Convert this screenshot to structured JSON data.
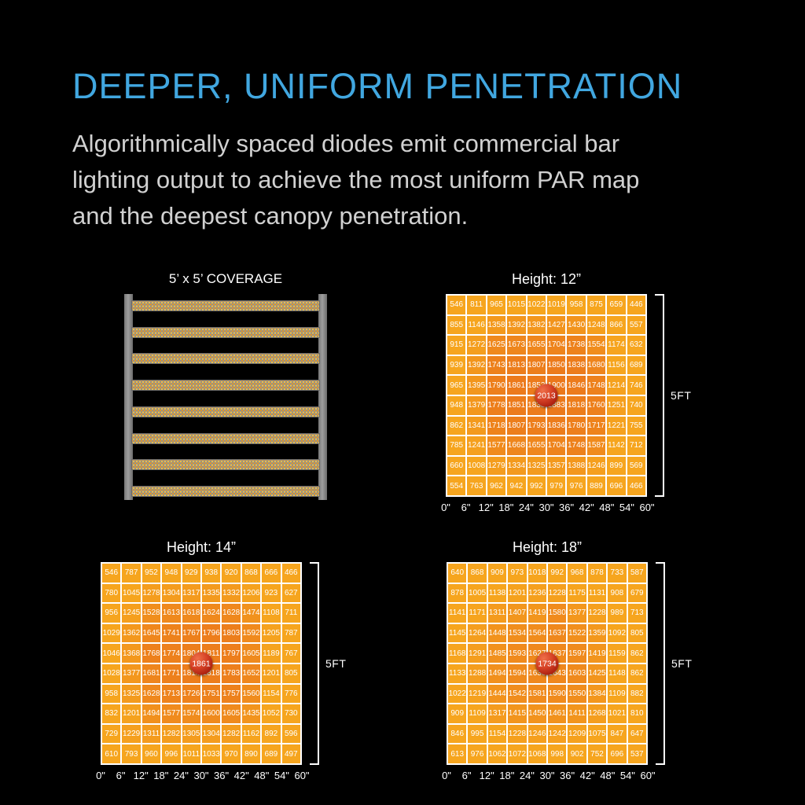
{
  "colors": {
    "background": "#000000",
    "accent_blue": "#41A7E0",
    "body_text": "#D1D1D1",
    "white": "#FFFFFF",
    "cell_low": "#F6A51E",
    "cell_high": "#EB781C",
    "peak_red": "#C22B16",
    "grid_line": "#FFFFFF",
    "rail_gray": "#8D8D8D"
  },
  "header": {
    "title": "DEEPER, UNIFORM PENETRATION",
    "description": "Algorithmically spaced diodes emit commercial bar\nlighting output to achieve the most uniform PAR map\nand the deepest canopy penetration."
  },
  "coverage": {
    "title": "5’ x 5’ COVERAGE",
    "bar_count": 8
  },
  "chart_data": [
    {
      "type": "heatmap",
      "title": "Height: 12”",
      "side_label": "5FT",
      "x_ticks": [
        "0\"",
        "6\"",
        "12\"",
        "18\"",
        "24\"",
        "30\"",
        "36\"",
        "42\"",
        "48\"",
        "54\"",
        "60\""
      ],
      "x_range_inches": [
        0,
        60
      ],
      "y_range_feet": 5,
      "center_value": 2013,
      "values": [
        [
          546,
          811,
          965,
          1015,
          1022,
          1019,
          958,
          875,
          659,
          446
        ],
        [
          855,
          1146,
          1358,
          1392,
          1382,
          1427,
          1430,
          1248,
          866,
          557
        ],
        [
          915,
          1272,
          1625,
          1673,
          1655,
          1704,
          1738,
          1554,
          1174,
          632
        ],
        [
          939,
          1392,
          1743,
          1813,
          1807,
          1850,
          1838,
          1680,
          1156,
          689
        ],
        [
          965,
          1395,
          1790,
          1861,
          1853,
          1900,
          1846,
          1748,
          1214,
          746
        ],
        [
          948,
          1379,
          1778,
          1851,
          1838,
          1883,
          1818,
          1760,
          1251,
          740
        ],
        [
          862,
          1341,
          1718,
          1807,
          1793,
          1836,
          1780,
          1717,
          1221,
          755
        ],
        [
          785,
          1241,
          1577,
          1668,
          1655,
          1704,
          1748,
          1587,
          1142,
          712
        ],
        [
          660,
          1008,
          1279,
          1334,
          1325,
          1357,
          1388,
          1246,
          899,
          569
        ],
        [
          554,
          763,
          962,
          942,
          992,
          979,
          976,
          889,
          696,
          466
        ]
      ]
    },
    {
      "type": "heatmap",
      "title": "Height: 14”",
      "side_label": "5FT",
      "x_ticks": [
        "0\"",
        "6\"",
        "12\"",
        "18\"",
        "24\"",
        "30\"",
        "36\"",
        "42\"",
        "48\"",
        "54\"",
        "60\""
      ],
      "x_range_inches": [
        0,
        60
      ],
      "y_range_feet": 5,
      "center_value": 1861,
      "values": [
        [
          546,
          787,
          952,
          948,
          929,
          938,
          920,
          868,
          666,
          466
        ],
        [
          780,
          1045,
          1278,
          1304,
          1317,
          1335,
          1332,
          1206,
          923,
          627
        ],
        [
          956,
          1245,
          1528,
          1613,
          1618,
          1624,
          1628,
          1474,
          1108,
          711
        ],
        [
          1029,
          1362,
          1645,
          1741,
          1767,
          1796,
          1803,
          1592,
          1205,
          787
        ],
        [
          1046,
          1368,
          1768,
          1774,
          1804,
          1811,
          1797,
          1605,
          1189,
          767
        ],
        [
          1028,
          1377,
          1681,
          1771,
          1814,
          1818,
          1783,
          1652,
          1201,
          805
        ],
        [
          958,
          1325,
          1628,
          1713,
          1726,
          1751,
          1757,
          1560,
          1154,
          776
        ],
        [
          832,
          1201,
          1494,
          1577,
          1574,
          1600,
          1605,
          1435,
          1052,
          730
        ],
        [
          729,
          1229,
          1311,
          1282,
          1305,
          1304,
          1282,
          1162,
          892,
          596
        ],
        [
          610,
          793,
          960,
          996,
          1011,
          1033,
          970,
          890,
          689,
          497
        ]
      ]
    },
    {
      "type": "heatmap",
      "title": "Height: 18”",
      "side_label": "5FT",
      "x_ticks": [
        "0\"",
        "6\"",
        "12\"",
        "18\"",
        "24\"",
        "30\"",
        "36\"",
        "42\"",
        "48\"",
        "54\"",
        "60\""
      ],
      "x_range_inches": [
        0,
        60
      ],
      "y_range_feet": 5,
      "center_value": 1734,
      "values": [
        [
          640,
          868,
          909,
          973,
          1018,
          992,
          968,
          878,
          733,
          587
        ],
        [
          878,
          1005,
          1138,
          1201,
          1236,
          1228,
          1175,
          1131,
          908,
          679
        ],
        [
          1141,
          1171,
          1311,
          1407,
          1419,
          1580,
          1377,
          1228,
          989,
          713
        ],
        [
          1145,
          1264,
          1448,
          1534,
          1564,
          1637,
          1522,
          1359,
          1092,
          805
        ],
        [
          1168,
          1291,
          1485,
          1593,
          1627,
          1637,
          1597,
          1419,
          1159,
          862
        ],
        [
          1133,
          1288,
          1494,
          1594,
          1630,
          1643,
          1603,
          1425,
          1148,
          862
        ],
        [
          1022,
          1219,
          1444,
          1542,
          1581,
          1590,
          1550,
          1384,
          1109,
          882
        ],
        [
          909,
          1109,
          1317,
          1415,
          1450,
          1461,
          1411,
          1268,
          1021,
          810
        ],
        [
          846,
          995,
          1154,
          1228,
          1246,
          1242,
          1209,
          1075,
          847,
          647
        ],
        [
          613,
          976,
          1062,
          1072,
          1068,
          998,
          902,
          752,
          696,
          537
        ]
      ]
    }
  ]
}
